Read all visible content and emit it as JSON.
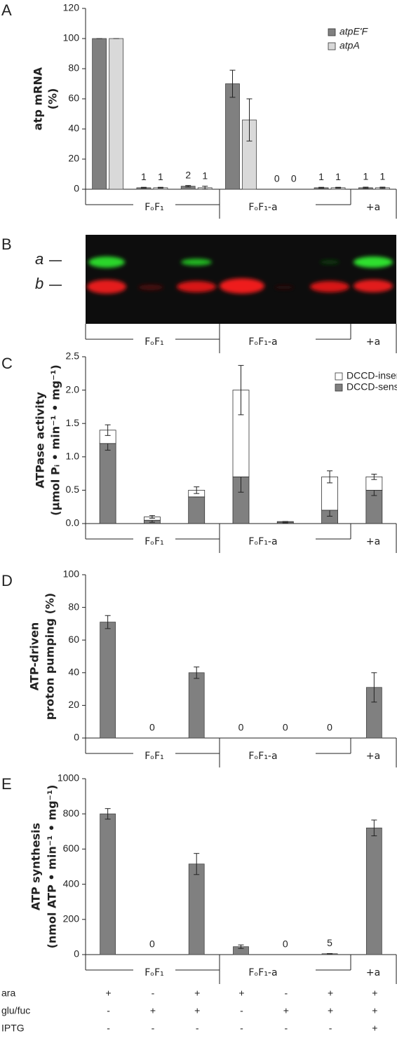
{
  "panel_labels": [
    "A",
    "B",
    "C",
    "D",
    "E"
  ],
  "group_labels": [
    "FₒF₁",
    "FₒF₁-a",
    "+a"
  ],
  "gel": {
    "band_labels": [
      "a",
      "b"
    ]
  },
  "conditions": {
    "rows": [
      {
        "name": "ara",
        "values": [
          "+",
          "-",
          "+",
          "+",
          "-",
          "+",
          "+"
        ]
      },
      {
        "name": "glu/fuc",
        "values": [
          "-",
          "+",
          "+",
          "-",
          "+",
          "+",
          "+"
        ]
      },
      {
        "name": "IPTG",
        "values": [
          "-",
          "-",
          "-",
          "-",
          "-",
          "-",
          "+"
        ]
      }
    ]
  },
  "chart_data": [
    {
      "type": "bar",
      "ylabel": [
        "atp mRNA",
        "(%)"
      ],
      "ylim": [
        0,
        120
      ],
      "yticks": [
        0,
        20,
        40,
        60,
        80,
        100,
        120
      ],
      "legend": "top-right",
      "series": [
        {
          "name": "atpE'F",
          "color": "#808080",
          "values": [
            100,
            1,
            2,
            70,
            0,
            1,
            1
          ],
          "errors": [
            0,
            0.3,
            0.5,
            9,
            0,
            0.3,
            0.4
          ],
          "value_labels": [
            null,
            "1",
            "2",
            null,
            "0",
            "1",
            "1"
          ]
        },
        {
          "name": "atpA",
          "color": "#d9d9d9",
          "values": [
            100,
            1,
            1,
            46,
            0,
            1,
            1
          ],
          "errors": [
            0,
            0.3,
            1,
            14,
            0,
            0.3,
            0.4
          ],
          "value_labels": [
            null,
            "1",
            "1",
            null,
            "0",
            "1",
            "1"
          ]
        }
      ]
    },
    {
      "type": "stacked_bar",
      "ylabel": [
        "ATPase activity",
        "(µmol Pᵢ • min⁻¹ • mg⁻¹)"
      ],
      "ylim": [
        0,
        2.5
      ],
      "yticks": [
        {
          "value": 0,
          "label": "0.0"
        },
        0.5,
        {
          "value": 1,
          "label": "1.0"
        },
        1.5,
        {
          "value": 2,
          "label": "2.0"
        },
        2.5
      ],
      "legend": "top-right",
      "series": [
        {
          "name": "DCCD-sensitive",
          "color": "#808080",
          "values": [
            1.2,
            0.05,
            0.4,
            0.7,
            0.02,
            0.2,
            0.5
          ],
          "errors": [
            0.1,
            0.03,
            0,
            0.23,
            0.01,
            0.09,
            0.08
          ]
        },
        {
          "name": "DCCD-insensitive",
          "color": "#ffffff",
          "values": [
            0.2,
            0.05,
            0.1,
            1.3,
            0.01,
            0.5,
            0.2
          ],
          "errors": [
            0.08,
            0.02,
            0.05,
            0.37,
            0,
            0.09,
            0.04
          ]
        }
      ]
    },
    {
      "type": "bar",
      "ylabel": [
        "ATP-driven",
        "proton pumping (%)"
      ],
      "ylim": [
        0,
        100
      ],
      "yticks": [
        0,
        20,
        40,
        60,
        80,
        100
      ],
      "series": [
        {
          "color": "#808080",
          "values": [
            71,
            0,
            40,
            0,
            0,
            0,
            31
          ],
          "errors": [
            4,
            0,
            3.5,
            0,
            0,
            0,
            9
          ],
          "value_labels": [
            null,
            "0",
            null,
            "0",
            "0",
            "0",
            null
          ]
        }
      ]
    },
    {
      "type": "bar",
      "ylabel": [
        "ATP synthesis",
        "(nmol ATP • min⁻¹ • mg⁻¹)"
      ],
      "ylim": [
        0,
        1000
      ],
      "yticks": [
        0,
        200,
        400,
        600,
        800,
        1000
      ],
      "series": [
        {
          "color": "#808080",
          "values": [
            800,
            0,
            515,
            45,
            0,
            5,
            720
          ],
          "errors": [
            30,
            0,
            60,
            10,
            0,
            1,
            45
          ],
          "value_labels": [
            null,
            "0",
            null,
            null,
            "0",
            "5",
            null
          ]
        }
      ]
    }
  ]
}
